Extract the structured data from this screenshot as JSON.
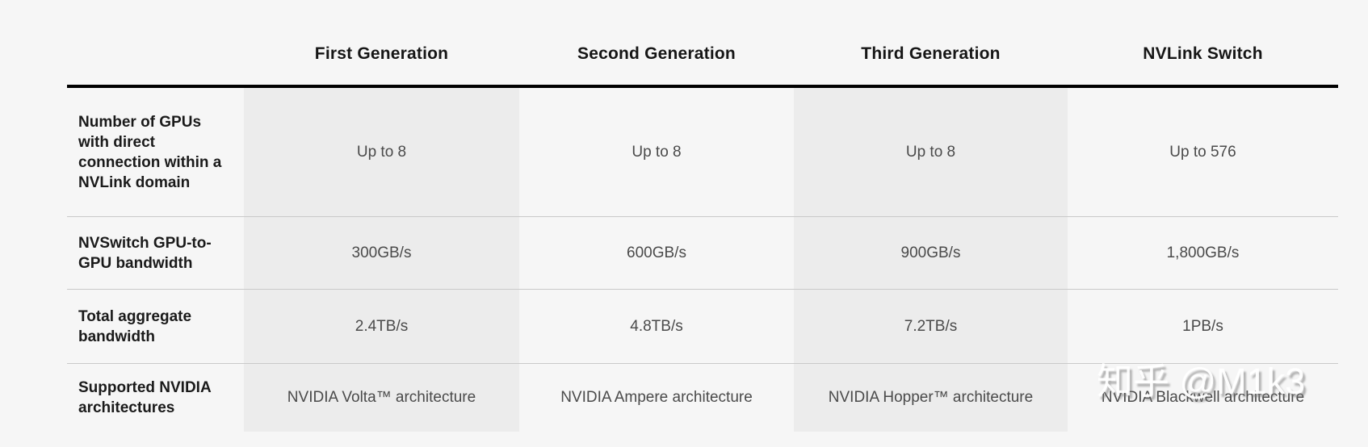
{
  "chart_data": {
    "type": "table",
    "title": "",
    "columns": [
      "First Generation",
      "Second Generation",
      "Third Generation",
      "NVLink Switch"
    ],
    "row_labels": [
      "Number of GPUs with direct connection within a NVLink domain",
      "NVSwitch GPU-to-GPU bandwidth",
      "Total aggregate bandwidth",
      "Supported NVIDIA architectures"
    ],
    "cells": [
      [
        "Up to 8",
        "Up to 8",
        "Up to 8",
        "Up to 576"
      ],
      [
        "300GB/s",
        "600GB/s",
        "900GB/s",
        "1,800GB/s"
      ],
      [
        "2.4TB/s",
        "4.8TB/s",
        "7.2TB/s",
        "1PB/s"
      ],
      [
        "NVIDIA Volta™ architecture",
        "NVIDIA Ampere architecture",
        "NVIDIA Hopper™ architecture",
        "NVIDIA Blackwell architecture"
      ]
    ]
  },
  "table": {
    "headers": [
      "First Generation",
      "Second Generation",
      "Third Generation",
      "NVLink Switch"
    ],
    "rows": [
      {
        "label": "Number of GPUs with direct connection within a NVLink domain",
        "values": [
          "Up to 8",
          "Up to 8",
          "Up to 8",
          "Up to 576"
        ]
      },
      {
        "label": "NVSwitch GPU-to-GPU bandwidth",
        "values": [
          "300GB/s",
          "600GB/s",
          "900GB/s",
          "1,800GB/s"
        ]
      },
      {
        "label": "Total aggregate bandwidth",
        "values": [
          "2.4TB/s",
          "4.8TB/s",
          "7.2TB/s",
          "1PB/s"
        ]
      },
      {
        "label": "Supported NVIDIA architectures",
        "values": [
          "NVIDIA Volta™ architecture",
          "NVIDIA Ampere architecture",
          "NVIDIA Hopper™ architecture",
          "NVIDIA Blackwell architecture"
        ]
      }
    ]
  },
  "watermark": {
    "text": "知乎 @M1k3"
  },
  "colors": {
    "page_background": "#f6f6f6",
    "shaded_column": "#ececec",
    "header_rule": "#000000",
    "row_separator": "#c9c9c9",
    "header_text": "#161616",
    "label_text": "#1a1a1a",
    "value_text": "#4a4a4a",
    "watermark_text": "#ffffff"
  }
}
